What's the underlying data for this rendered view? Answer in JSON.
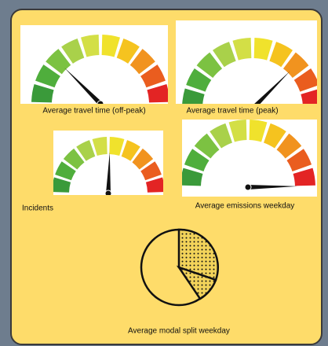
{
  "gauges": [
    {
      "label": "Average travel time (off-peak)"
    },
    {
      "label": "Average travel time (peak)"
    },
    {
      "label": "Incidents"
    },
    {
      "label": "Average emissions weekday"
    }
  ],
  "pie": {
    "label": "Average modal split weekday"
  }
}
